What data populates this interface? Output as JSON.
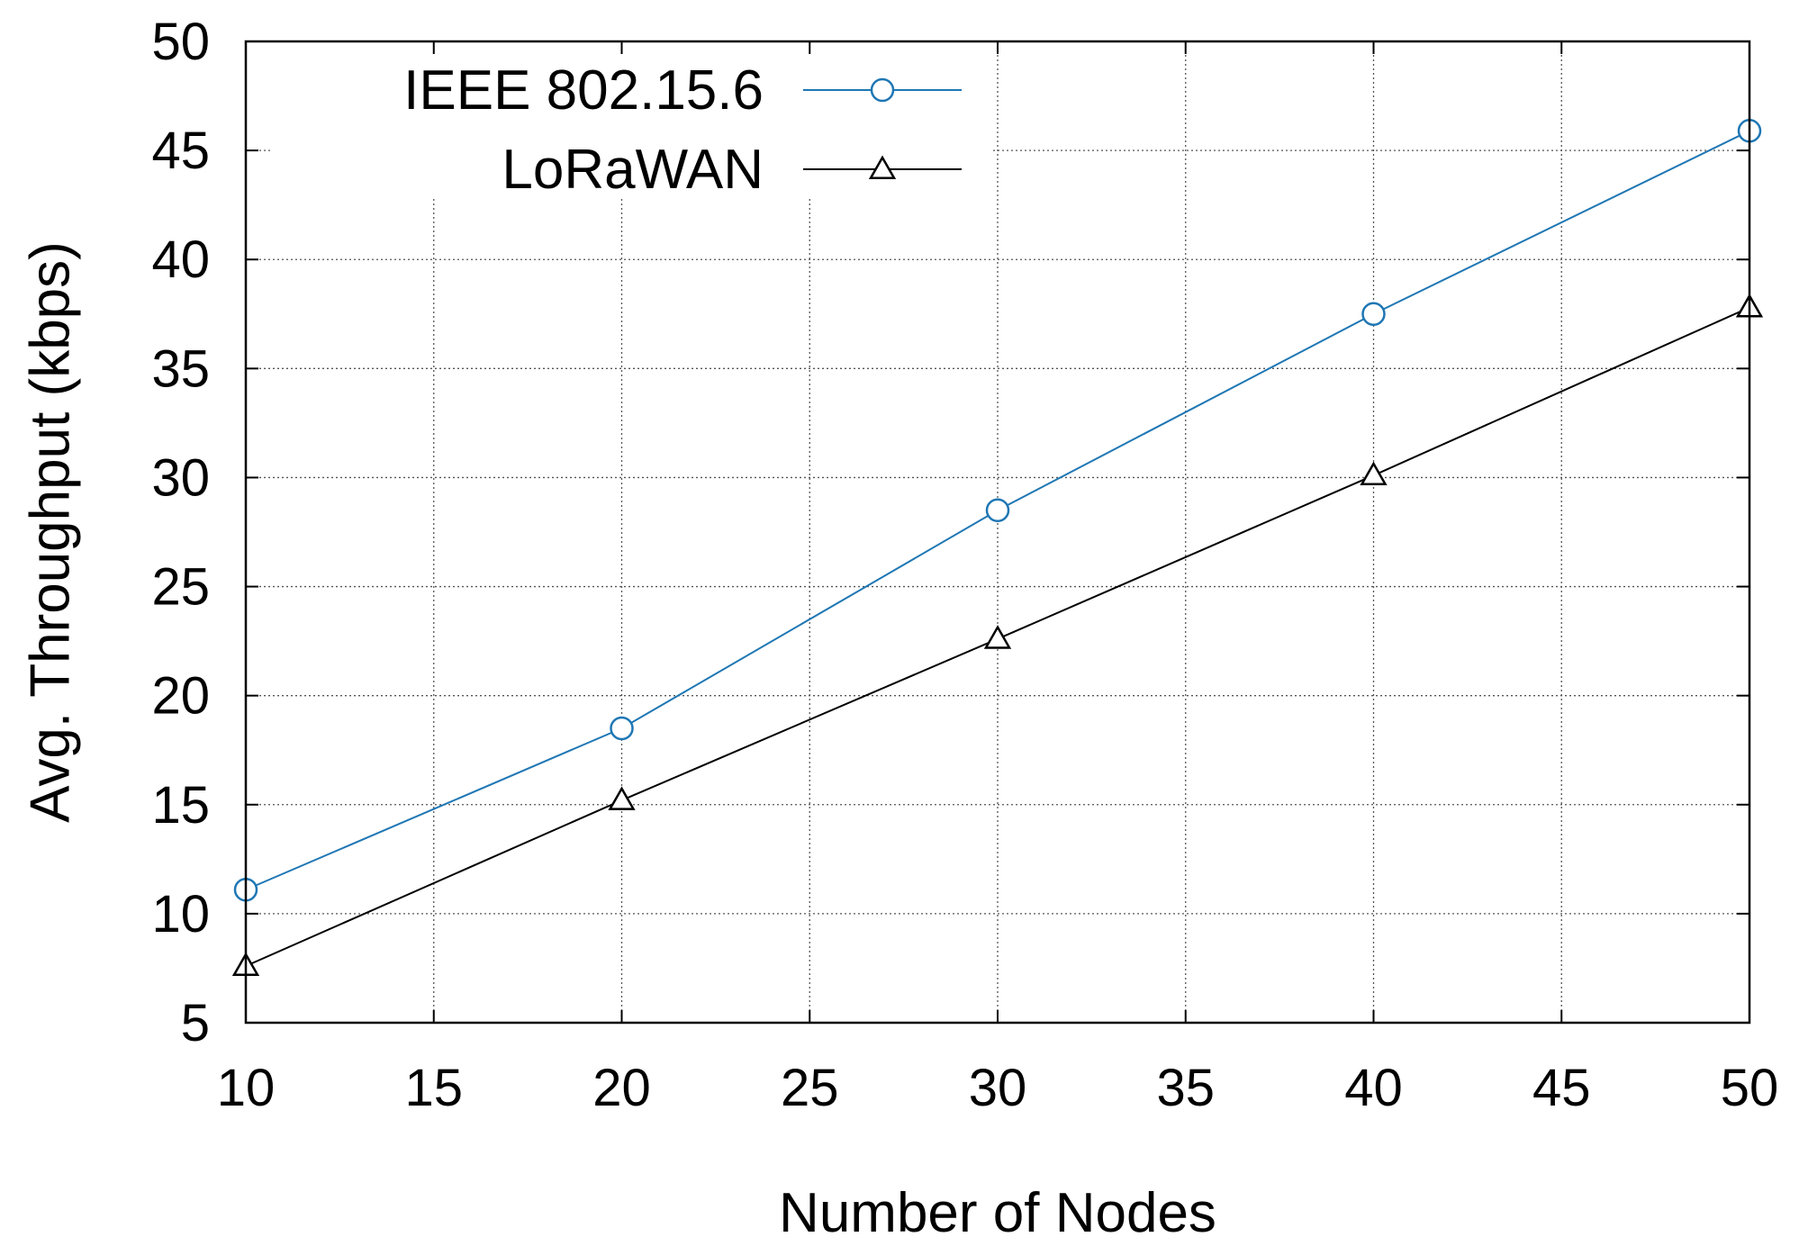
{
  "chart_data": {
    "type": "line",
    "title": "",
    "xlabel": "Number of Nodes",
    "ylabel": "Avg. Throughput (kbps)",
    "xlim": [
      10,
      50
    ],
    "ylim": [
      5,
      50
    ],
    "xticks": [
      10,
      15,
      20,
      25,
      30,
      35,
      40,
      45,
      50
    ],
    "yticks": [
      5,
      10,
      15,
      20,
      25,
      30,
      35,
      40,
      45,
      50
    ],
    "grid": true,
    "legend_position": "top-left",
    "series": [
      {
        "name": "IEEE 802.15.6",
        "color": "#1f77b4",
        "marker": "circle",
        "x": [
          10,
          20,
          30,
          40,
          50
        ],
        "y": [
          11.1,
          18.5,
          28.5,
          37.5,
          45.9
        ]
      },
      {
        "name": "LoRaWAN",
        "color": "#000000",
        "marker": "triangle",
        "x": [
          10,
          20,
          30,
          40,
          50
        ],
        "y": [
          7.6,
          15.2,
          22.6,
          30.1,
          37.8
        ]
      }
    ]
  }
}
